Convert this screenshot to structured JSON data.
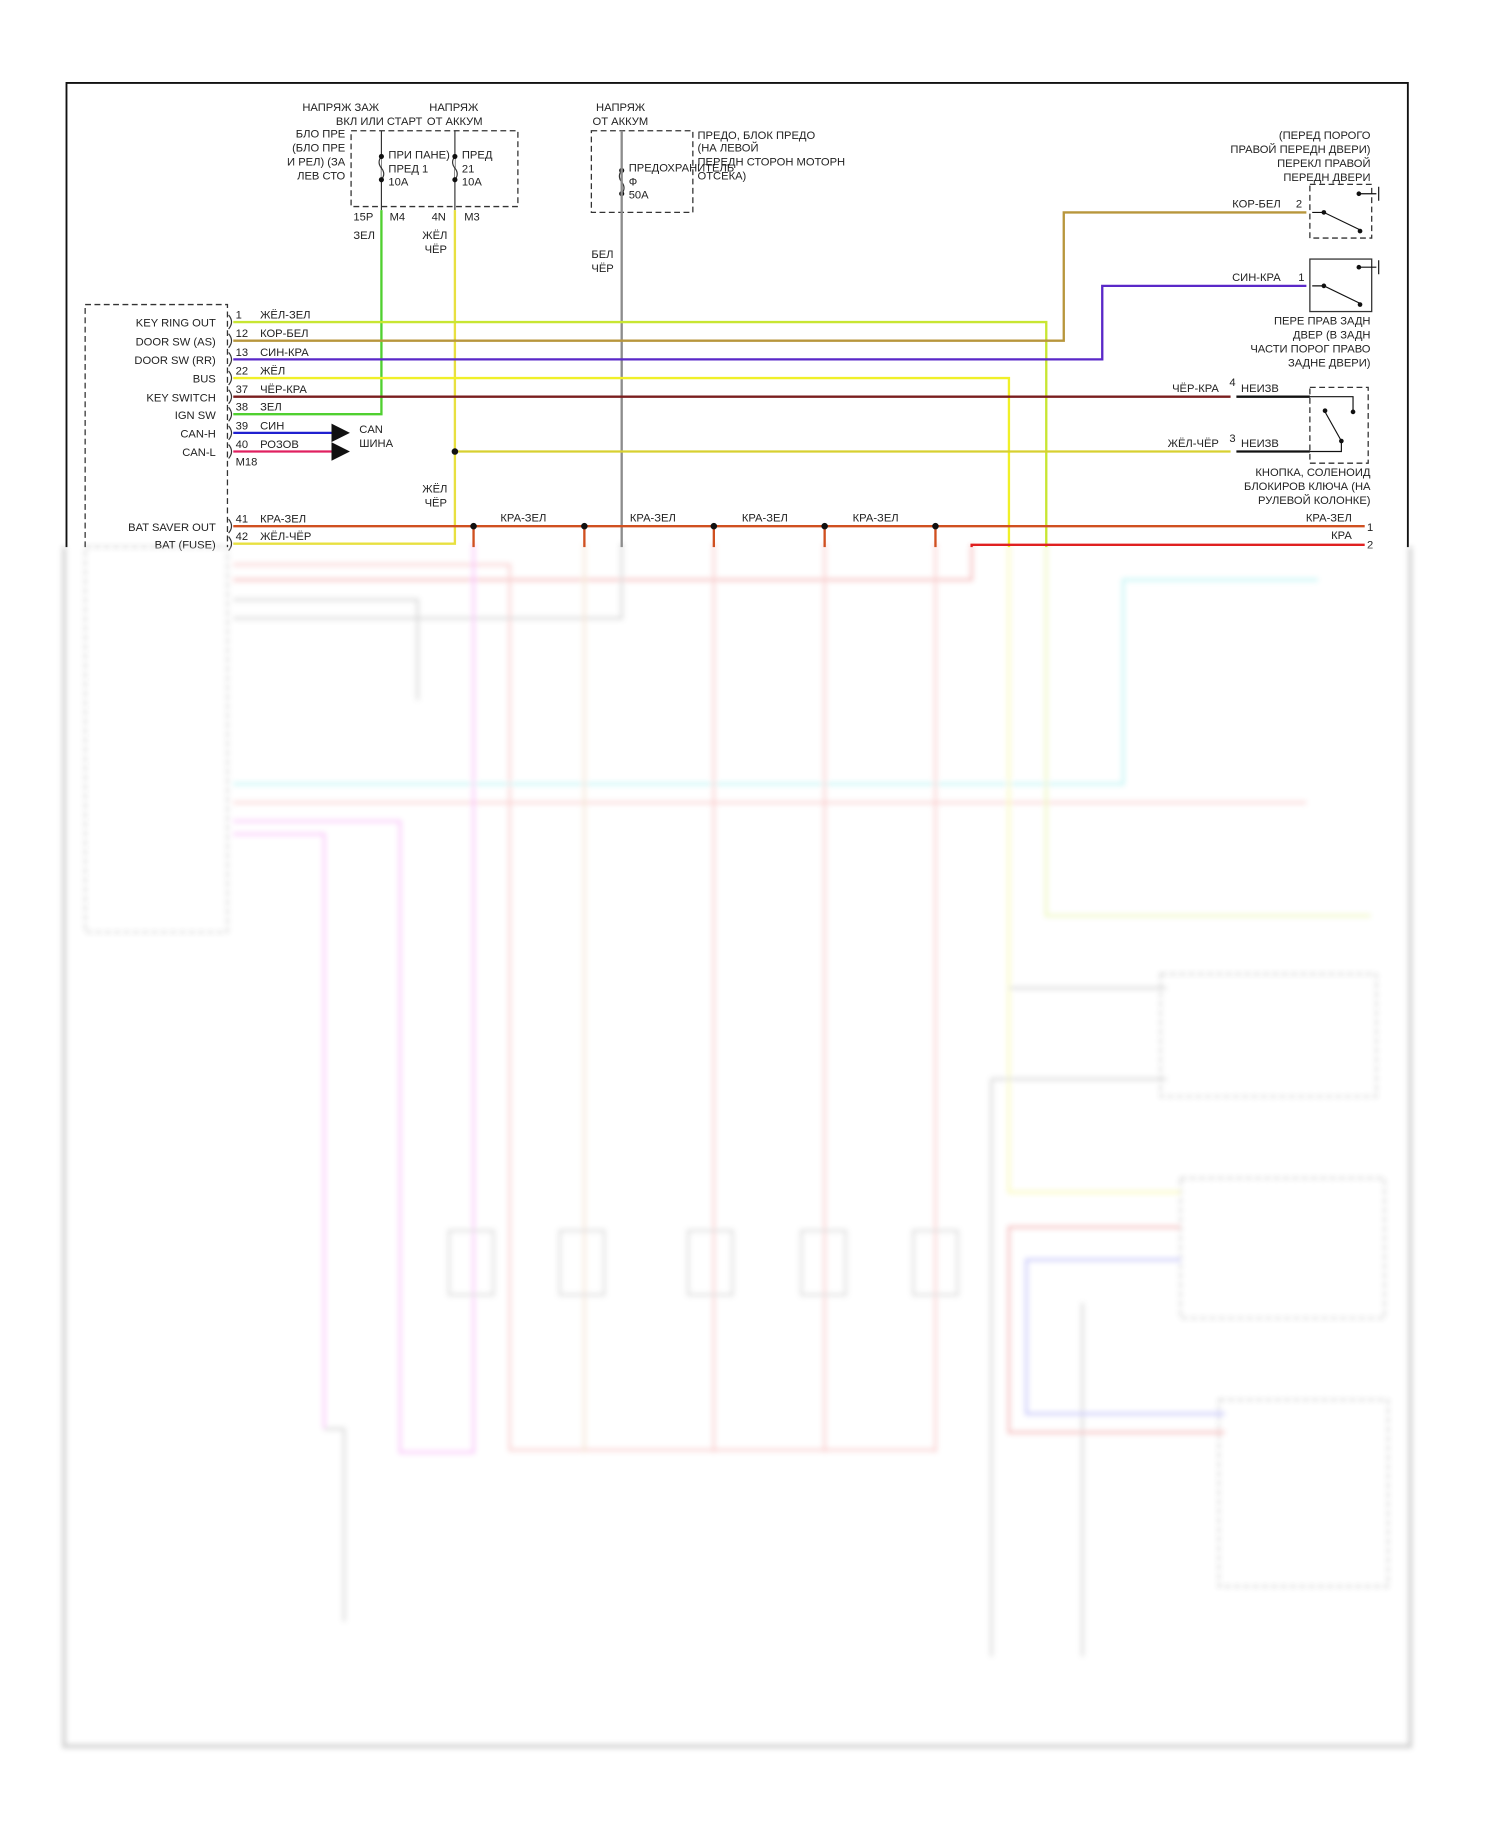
{
  "fuse_block": {
    "header_ign": [
      "НАПРЯЖ ЗАЖ",
      "ВКЛ ИЛИ СТАРТ"
    ],
    "header_bat": [
      "НАПРЯЖ",
      "ОТ АККУМ"
    ],
    "name": [
      "БЛО ПРЕ",
      "(БЛО ПРЕ",
      "И РЕЛ) (ЗА",
      "ЛЕВ СТО"
    ],
    "fuse1": [
      "ПРИ ПАНЕ)",
      "ПРЕД 1",
      "10A"
    ],
    "fuse2": [
      "ПРЕД",
      "21",
      "10A"
    ],
    "pins": [
      "15P",
      "M4",
      "4N",
      "M3"
    ],
    "wire1": "ЗЕЛ",
    "wire2": [
      "ЖЁЛ",
      "ЧЁР"
    ]
  },
  "engine_fuse": {
    "header": [
      "НАПРЯЖ",
      "ОТ АККУМ"
    ],
    "name": [
      "ПРЕДО, БЛОК ПРЕДО",
      "(НА ЛЕВОЙ",
      "ПЕРЕДН СТОРОН МОТОРН",
      "ОТСЕКА)"
    ],
    "fuse": [
      "ПРЕДОХРАНИТЕЛЬ",
      "Ф",
      "50A"
    ],
    "wire": [
      "БЕЛ",
      "ЧЁР"
    ]
  },
  "module": {
    "connector": "M18",
    "pins": [
      {
        "label": "KEY RING OUT",
        "num": "1",
        "wire": "ЖЁЛ-ЗЕЛ",
        "color": "#c8e632"
      },
      {
        "label": "DOOR SW (AS)",
        "num": "12",
        "wire": "КОР-БЕЛ",
        "color": "#b8963c"
      },
      {
        "label": "DOOR SW (RR)",
        "num": "13",
        "wire": "СИН-КРА",
        "color": "#5a28c8"
      },
      {
        "label": "BUS",
        "num": "22",
        "wire": "ЖЁЛ",
        "color": "#f0f028"
      },
      {
        "label": "KEY SWITCH",
        "num": "37",
        "wire": "ЧЁР-КРА",
        "color": "#7a1e1e"
      },
      {
        "label": "IGN SW",
        "num": "38",
        "wire": "ЗЕЛ",
        "color": "#50d030"
      },
      {
        "label": "CAN-H",
        "num": "39",
        "wire": "СИН",
        "color": "#2020d0"
      },
      {
        "label": "CAN-L",
        "num": "40",
        "wire": "РОЗОВ",
        "color": "#e02060"
      },
      {
        "label": "BAT SAVER OUT",
        "num": "41",
        "wire": "КРА-ЗЕЛ",
        "color": "#d05020"
      },
      {
        "label": "BAT (FUSE)",
        "num": "42",
        "wire": "ЖЁЛ-ЧЁР",
        "color": "#e8e040"
      }
    ],
    "can_bus": [
      "CAN",
      "ШИНА"
    ]
  },
  "junction_wire": [
    "ЖЁЛ",
    "ЧЁР"
  ],
  "splice_labels": [
    "КРА-ЗЕЛ",
    "КРА-ЗЕЛ",
    "КРА-ЗЕЛ",
    "КРА-ЗЕЛ"
  ],
  "front_door_switch": {
    "name": [
      "(ПЕРЕД ПОРОГО",
      "ПРАВОЙ ПЕРЕДН ДВЕРИ)",
      "ПЕРЕКЛ ПРАВОЙ",
      "ПЕРЕДН ДВЕРИ"
    ],
    "wire": "КОР-БЕЛ",
    "pin": "2"
  },
  "rear_door_switch": {
    "name": [
      "ПЕРЕ ПРАВ ЗАДН",
      "ДВЕР (В ЗАДН",
      "ЧАСТИ ПОРОГ ПРАВО",
      "ЗАДНЕ ДВЕРИ)"
    ],
    "wire": "СИН-КРА",
    "pin": "1"
  },
  "key_lock_solenoid": {
    "name": [
      "КНОПКА, СОЛЕНОИД",
      "БЛОКИРОВ КЛЮЧА (НА",
      "РУЛЕВОЙ КОЛОНКЕ)"
    ],
    "wire_top": "ЧЁР-КРА",
    "pin_top": "4",
    "ext_top": "НЕИЗВ",
    "wire_bot": "ЖЁЛ-ЧЁР",
    "pin_bot": "3",
    "ext_bot": "НЕИЗВ"
  },
  "right_connector": {
    "wire1": "КРА-ЗЕЛ",
    "pin1": "1",
    "wire2": "КРА",
    "pin2": "2"
  }
}
